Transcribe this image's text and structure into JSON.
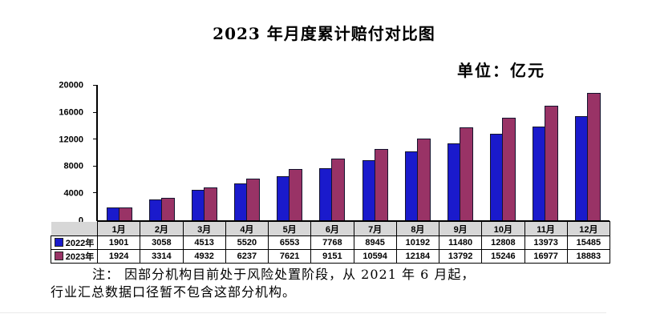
{
  "title": "2023 年月度累计赔付对比图",
  "unit_label": "单位：亿元",
  "note": {
    "line1": "注： 因部分机构目前处于风险处置阶段，从 2021 年 6 月起，",
    "line2": "行业汇总数据口径暂不包含这部分机构。"
  },
  "colors": {
    "series_2022": "#1a1acc",
    "series_2023": "#993366",
    "bar_border": "#14142e",
    "month_row_bg": "#d7d7d7",
    "axis": "#000000"
  },
  "chart_data": {
    "type": "bar",
    "title": "2023 年月度累计赔付对比图",
    "unit": "亿元",
    "categories": [
      "1月",
      "2月",
      "3月",
      "4月",
      "5月",
      "6月",
      "7月",
      "8月",
      "9月",
      "10月",
      "11月",
      "12月"
    ],
    "series": [
      {
        "name": "2022年",
        "color": "#1a1acc",
        "values": [
          1901,
          3058,
          4513,
          5520,
          6553,
          7768,
          8945,
          10192,
          11480,
          12808,
          13973,
          15485
        ]
      },
      {
        "name": "2023年",
        "color": "#993366",
        "values": [
          1924,
          3314,
          4932,
          6237,
          7621,
          9151,
          10594,
          12184,
          13792,
          15246,
          16977,
          18883
        ]
      }
    ],
    "xlabel": "",
    "ylabel": "",
    "ylim": [
      0,
      20000
    ],
    "yticks": [
      0,
      4000,
      8000,
      12000,
      16000,
      20000
    ],
    "grid": false,
    "legend_position": "data-table-left"
  }
}
